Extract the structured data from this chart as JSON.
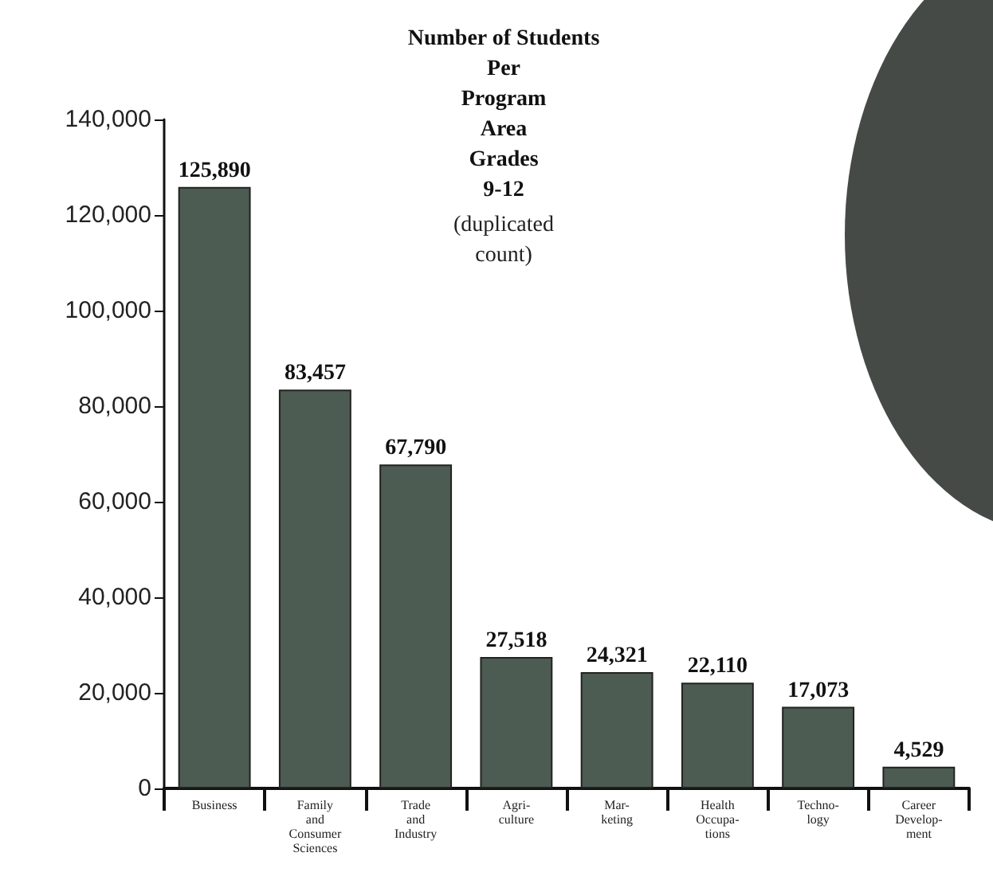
{
  "chart_data": {
    "type": "bar",
    "title": "Number of Students\nPer\nProgram\nArea\nGrades\n9-12",
    "subtitle": "(duplicated\ncount)",
    "categories": [
      "Business",
      "Family\nand\nConsumer\nSciences",
      "Trade\nand\nIndustry",
      "Agri-\nculture",
      "Mar-\nketing",
      "Health\nOccupa-\ntions",
      "Techno-\nlogy",
      "Career\nDevelop-\nment"
    ],
    "values": [
      125890,
      83457,
      67790,
      27518,
      24321,
      22110,
      17073,
      4529
    ],
    "value_labels": [
      "125,890",
      "83,457",
      "67,790",
      "27,518",
      "24,321",
      "22,110",
      "17,073",
      "4,529"
    ],
    "color": "#4d5c52",
    "ylim": [
      0,
      140000
    ],
    "yticks": [
      {
        "value": 0,
        "label": "0"
      },
      {
        "value": 20000,
        "label": "20,000"
      },
      {
        "value": 40000,
        "label": "40,000"
      },
      {
        "value": 60000,
        "label": "60,000"
      },
      {
        "value": 80000,
        "label": "80,000"
      },
      {
        "value": 100000,
        "label": "100,000"
      },
      {
        "value": 120000,
        "label": "120,000"
      },
      {
        "value": 140000,
        "label": "140,000"
      }
    ]
  }
}
